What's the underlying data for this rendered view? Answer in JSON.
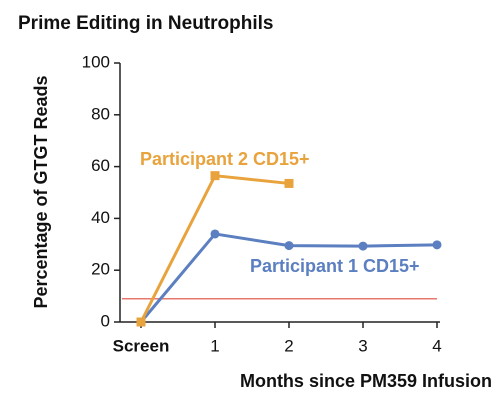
{
  "chart_data": {
    "type": "line",
    "title": "Prime Editing in Neutrophils",
    "xlabel": "Months since PM359 Infusion",
    "ylabel": "Percentage of GTGT Reads",
    "categories": [
      "Screen",
      "1",
      "2",
      "3",
      "4"
    ],
    "series": [
      {
        "name": "Participant 1 CD15+",
        "color": "#5b7fc0",
        "marker": "circle",
        "values": [
          0,
          34,
          29.5,
          29.3,
          29.8
        ]
      },
      {
        "name": "Participant 2 CD15+",
        "color": "#e8a33d",
        "marker": "square",
        "values": [
          0,
          56.5,
          53.5,
          null,
          null
        ]
      }
    ],
    "hline": {
      "value": 9,
      "color": "#e8786e"
    },
    "ylim": [
      0,
      100
    ],
    "yticks": [
      0,
      20,
      40,
      60,
      80,
      100
    ]
  }
}
